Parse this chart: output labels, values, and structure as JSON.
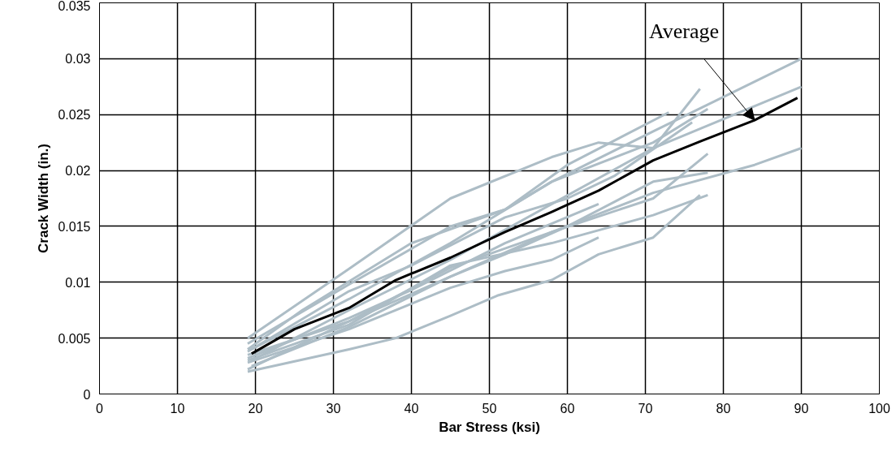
{
  "chart_data": {
    "type": "line",
    "xlabel": "Bar Stress (ksi)",
    "ylabel": "Crack Width (in.)",
    "xlim": [
      0,
      100
    ],
    "xticks": [
      0,
      10,
      20,
      30,
      40,
      50,
      60,
      70,
      80,
      90,
      100
    ],
    "ylim": [
      0,
      0.035
    ],
    "yticks": [
      0,
      0.005,
      0.01,
      0.015,
      0.02,
      0.025,
      0.03,
      0.035
    ],
    "grid": true,
    "marker": "none",
    "line_style": "solid",
    "annotations": [
      {
        "text": "Average",
        "x": 84,
        "y": 0.0245
      }
    ],
    "series": [
      {
        "color": "#adbdc6",
        "x": [
          19.5,
          32,
          45,
          58,
          71,
          90
        ],
        "values": [
          0.004,
          0.0085,
          0.0135,
          0.019,
          0.0235,
          0.03
        ]
      },
      {
        "color": "#adbdc6",
        "x": [
          19.5,
          32,
          45,
          58,
          71,
          90
        ],
        "values": [
          0.003,
          0.0075,
          0.012,
          0.017,
          0.022,
          0.0275
        ]
      },
      {
        "color": "#adbdc6",
        "x": [
          19.5,
          32,
          45,
          58,
          71,
          84,
          90
        ],
        "values": [
          0.0025,
          0.006,
          0.0105,
          0.0145,
          0.018,
          0.0205,
          0.022
        ]
      },
      {
        "color": "#adbdc6",
        "x": [
          19,
          32,
          45,
          58,
          64,
          71,
          77
        ],
        "values": [
          0.005,
          0.0112,
          0.0175,
          0.0212,
          0.0225,
          0.022,
          0.0273
        ]
      },
      {
        "color": "#adbdc6",
        "x": [
          19,
          32,
          38,
          45,
          51,
          58,
          64,
          71,
          77
        ],
        "values": [
          0.002,
          0.004,
          0.005,
          0.007,
          0.0088,
          0.0102,
          0.0125,
          0.014,
          0.0178
        ]
      },
      {
        "color": "#adbdc6",
        "x": [
          19,
          32,
          45,
          52,
          58,
          71,
          78
        ],
        "values": [
          0.0045,
          0.0098,
          0.015,
          0.0165,
          0.019,
          0.0225,
          0.0255
        ]
      },
      {
        "color": "#adbdc6",
        "x": [
          19,
          32,
          45,
          58,
          71,
          78
        ],
        "values": [
          0.0035,
          0.0065,
          0.0113,
          0.0145,
          0.0175,
          0.0215
        ]
      },
      {
        "color": "#adbdc6",
        "x": [
          19,
          32,
          45,
          52,
          58,
          64
        ],
        "values": [
          0.0028,
          0.0058,
          0.0095,
          0.011,
          0.012,
          0.014
        ]
      },
      {
        "color": "#adbdc6",
        "x": [
          19,
          32,
          40,
          52,
          64
        ],
        "values": [
          0.0032,
          0.0068,
          0.0093,
          0.0135,
          0.017
        ]
      },
      {
        "color": "#adbdc6",
        "x": [
          19,
          32,
          45,
          58,
          71,
          78
        ],
        "values": [
          0.003,
          0.0062,
          0.0115,
          0.0135,
          0.016,
          0.0178
        ]
      },
      {
        "color": "#adbdc6",
        "x": [
          19,
          26,
          40,
          52,
          60,
          73
        ],
        "values": [
          0.004,
          0.0075,
          0.0135,
          0.0165,
          0.0205,
          0.0252
        ]
      },
      {
        "color": "#adbdc6",
        "x": [
          19,
          32,
          45,
          52,
          60,
          71,
          78
        ],
        "values": [
          0.0022,
          0.0065,
          0.0105,
          0.0125,
          0.015,
          0.019,
          0.0198
        ]
      },
      {
        "color": "#adbdc6",
        "x": [
          19,
          32,
          40,
          52,
          60,
          66,
          76
        ],
        "values": [
          0.0038,
          0.0092,
          0.0115,
          0.0158,
          0.0175,
          0.0195,
          0.0243
        ]
      },
      {
        "color": "#000000",
        "x": [
          19.5,
          25,
          32,
          38,
          45,
          52,
          58,
          64,
          71,
          77,
          84,
          89.5
        ],
        "values": [
          0.0036,
          0.0058,
          0.0077,
          0.0102,
          0.0122,
          0.0145,
          0.0163,
          0.0182,
          0.0209,
          0.0226,
          0.0245,
          0.0265
        ]
      }
    ]
  }
}
